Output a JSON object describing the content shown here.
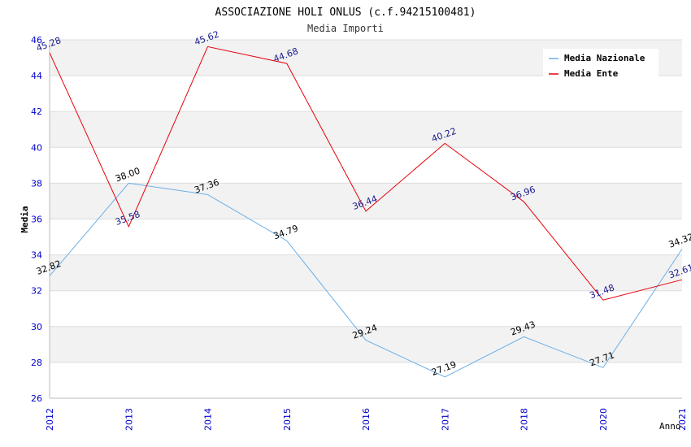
{
  "chart_data": {
    "type": "line",
    "title": "ASSOCIAZIONE HOLI ONLUS (c.f.94215100481)",
    "subtitle": "Media Importi",
    "xlabel": "Anno",
    "ylabel": "Media",
    "categories": [
      "2012",
      "2013",
      "2014",
      "2015",
      "2016",
      "2017",
      "2018",
      "2020",
      "2021"
    ],
    "ylim": [
      26,
      46
    ],
    "yticks": [
      26,
      28,
      30,
      32,
      34,
      36,
      38,
      40,
      42,
      44,
      46
    ],
    "grid": true,
    "legend_position": "top-right",
    "series": [
      {
        "name": "Media Nazionale",
        "color": "#6aaee8",
        "label_color": "#000000",
        "values": [
          32.82,
          38.0,
          37.36,
          34.79,
          29.24,
          27.19,
          29.43,
          27.71,
          34.32
        ],
        "labels": [
          "32.82",
          "38.00",
          "37.36",
          "34.79",
          "29.24",
          "27.19",
          "29.43",
          "27.71",
          "34.32"
        ]
      },
      {
        "name": "Media Ente",
        "color": "#e8000b",
        "label_color": "#1a1a8c",
        "values": [
          45.28,
          35.58,
          45.62,
          44.68,
          36.44,
          40.22,
          36.96,
          31.48,
          32.61
        ],
        "labels": [
          "45.28",
          "35.58",
          "45.62",
          "44.68",
          "36.44",
          "40.22",
          "36.96",
          "31.48",
          "32.61"
        ]
      }
    ],
    "colors": {
      "axis_tick_text": "#0000cc",
      "band": "#f2f2f2",
      "gridline": "#dddddd"
    }
  }
}
